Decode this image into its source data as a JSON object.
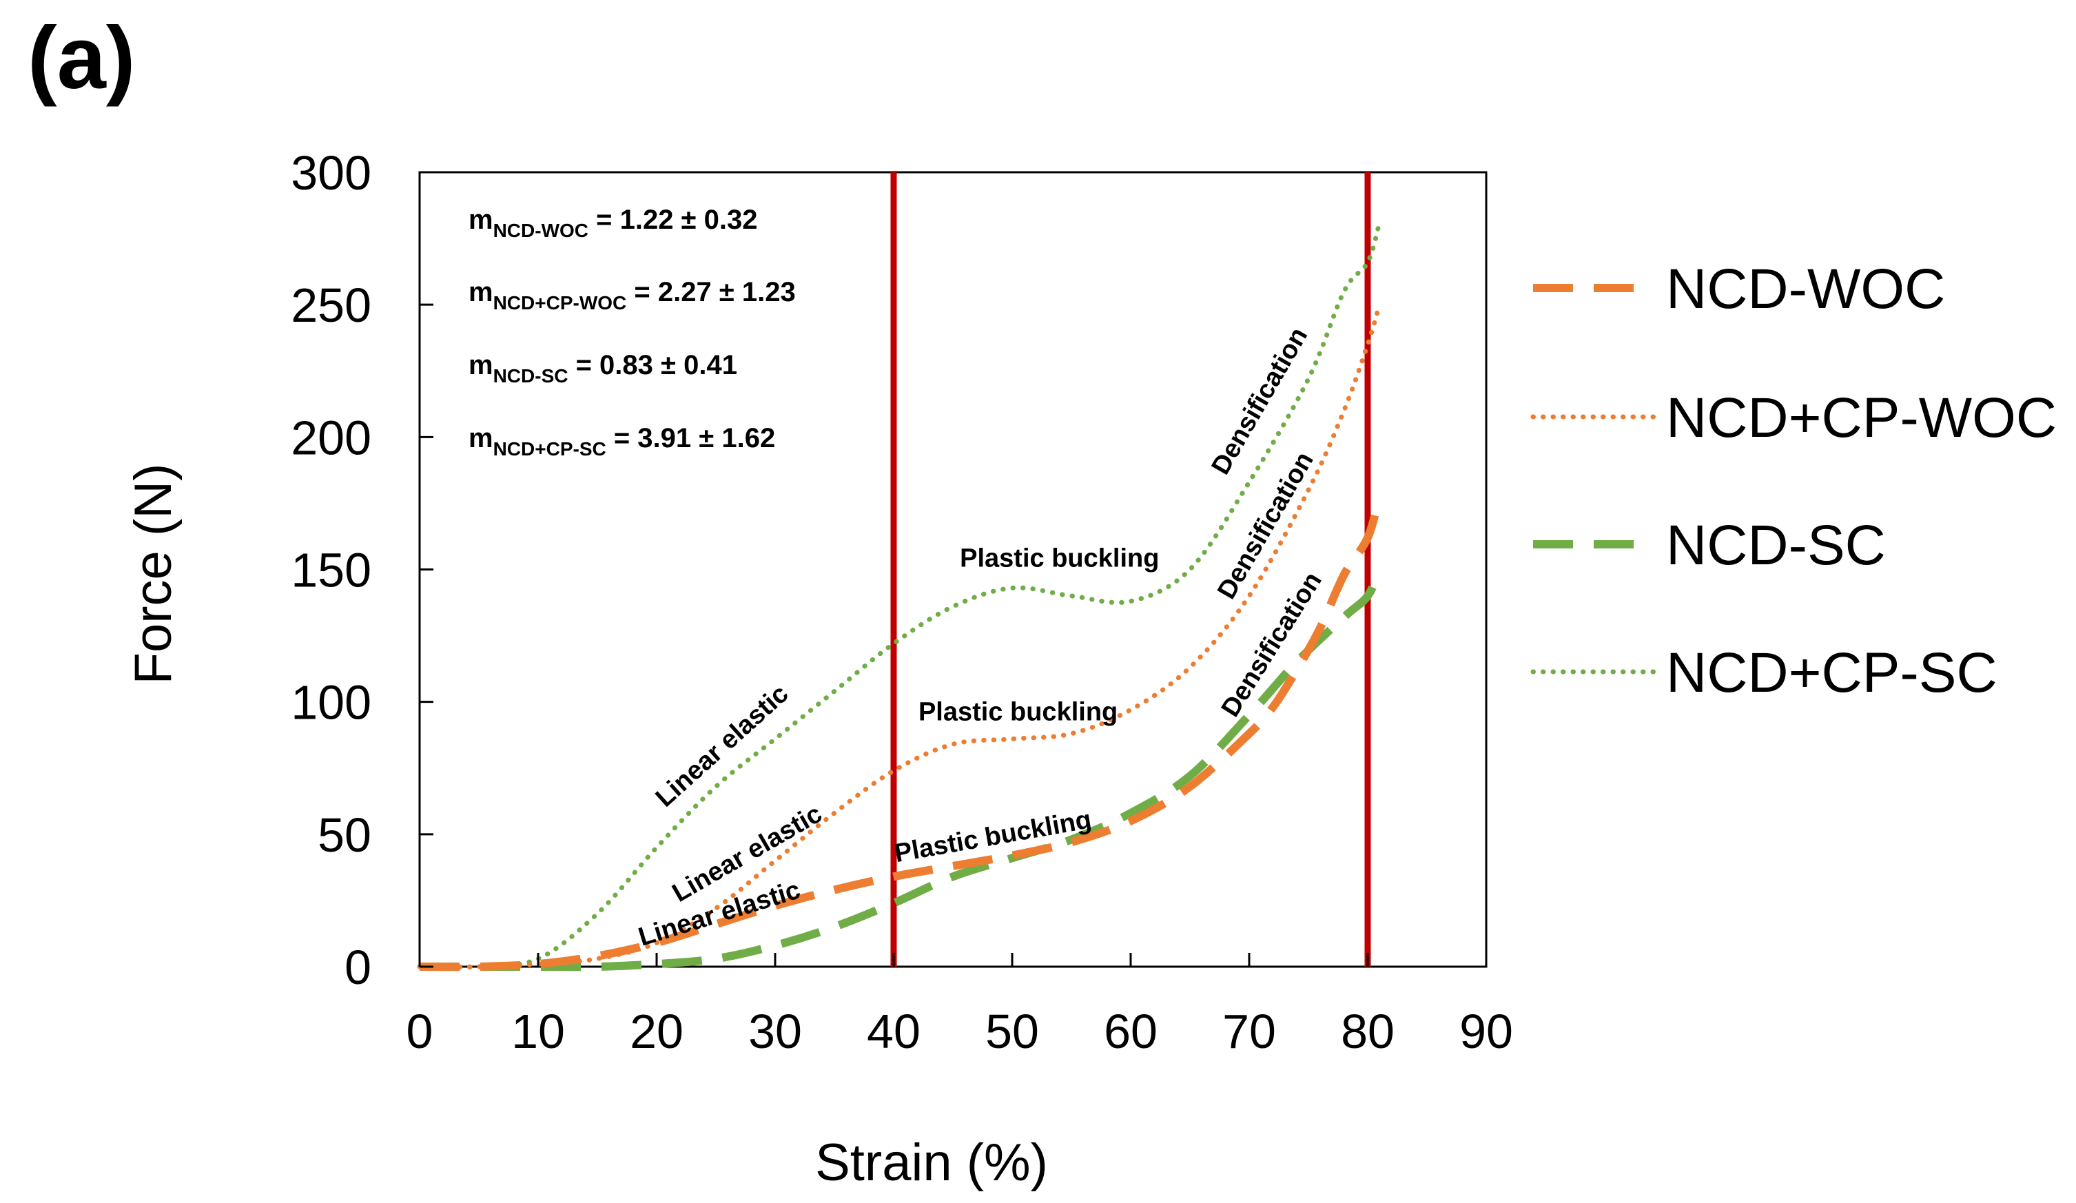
{
  "chart_data": {
    "type": "line",
    "panel_label": "(a)",
    "xlabel": "Strain (%)",
    "ylabel": "Force (N)",
    "xlim": [
      0,
      90
    ],
    "ylim": [
      0,
      300
    ],
    "xticks": [
      "0",
      "10",
      "20",
      "30",
      "40",
      "50",
      "60",
      "70",
      "80",
      "90"
    ],
    "yticks": [
      "0",
      "50",
      "100",
      "150",
      "200",
      "250",
      "300"
    ],
    "vlines": [
      40,
      80
    ],
    "vline_color": "#c00000",
    "series": [
      {
        "name": "NCD-WOC",
        "color": "#ed7d31",
        "style": "dashed",
        "x": [
          0,
          5,
          10,
          15,
          20,
          25,
          30,
          35,
          40,
          45,
          50,
          55,
          60,
          65,
          70,
          72,
          74,
          76,
          78,
          80,
          81
        ],
        "y": [
          0,
          0,
          1,
          4,
          9,
          16,
          23,
          29,
          34,
          38,
          42,
          47,
          55,
          68,
          88,
          98,
          112,
          128,
          148,
          162,
          178
        ]
      },
      {
        "name": "NCD+CP-WOC",
        "color": "#ed7d31",
        "style": "dotted",
        "x": [
          0,
          5,
          10,
          15,
          20,
          25,
          30,
          35,
          40,
          45,
          50,
          55,
          60,
          65,
          70,
          75,
          78,
          80,
          81
        ],
        "y": [
          0,
          0,
          1,
          3,
          9,
          22,
          40,
          58,
          74,
          84,
          86,
          88,
          97,
          113,
          140,
          180,
          210,
          235,
          250
        ]
      },
      {
        "name": "NCD-SC",
        "color": "#70ad47",
        "style": "dashed",
        "x": [
          0,
          5,
          10,
          15,
          20,
          25,
          30,
          35,
          40,
          45,
          50,
          55,
          60,
          65,
          70,
          74,
          78,
          80,
          81
        ],
        "y": [
          0,
          0,
          0,
          0,
          1,
          3,
          8,
          15,
          24,
          34,
          41,
          48,
          58,
          72,
          95,
          115,
          132,
          140,
          150
        ]
      },
      {
        "name": "NCD+CP-SC",
        "color": "#70ad47",
        "style": "dotted",
        "x": [
          0,
          5,
          10,
          15,
          20,
          25,
          30,
          35,
          40,
          45,
          50,
          55,
          60,
          65,
          70,
          75,
          78,
          80,
          81
        ],
        "y": [
          0,
          0,
          3,
          20,
          45,
          68,
          86,
          104,
          122,
          136,
          143,
          140,
          138,
          150,
          183,
          222,
          255,
          266,
          281
        ]
      }
    ],
    "equations": [
      {
        "m": "m",
        "sub": "NCD-WOC",
        "value": " = 1.22 ± 0.32"
      },
      {
        "m": "m",
        "sub": "NCD+CP-WOC",
        "value": " = 2.27 ± 1.23"
      },
      {
        "m": "m",
        "sub": "NCD-SC",
        "value": " = 0.83 ± 0.41"
      },
      {
        "m": "m",
        "sub": "NCD+CP-SC",
        "value": " = 3.91 ± 1.62"
      }
    ],
    "annotations": [
      {
        "text": "Linear elastic",
        "x": 26,
        "y": 81,
        "angle": -42
      },
      {
        "text": "Linear elastic",
        "x": 28,
        "y": 40,
        "angle": -30
      },
      {
        "text": "Linear elastic",
        "x": 25.5,
        "y": 17,
        "angle": -17
      },
      {
        "text": "Plastic buckling",
        "x": 54,
        "y": 151,
        "angle": 0
      },
      {
        "text": "Plastic buckling",
        "x": 50.5,
        "y": 93,
        "angle": 0
      },
      {
        "text": "Plastic buckling",
        "x": 48.5,
        "y": 46,
        "angle": -10
      },
      {
        "text": "Densification",
        "x": 71.5,
        "y": 212,
        "angle": -60
      },
      {
        "text": "Densification",
        "x": 72,
        "y": 165,
        "angle": -60
      },
      {
        "text": "Densification",
        "x": 72.5,
        "y": 120,
        "angle": -58
      }
    ],
    "legend": {
      "position": "right",
      "items": [
        "NCD-WOC",
        "NCD+CP-WOC",
        "NCD-SC",
        "NCD+CP-SC"
      ]
    }
  }
}
